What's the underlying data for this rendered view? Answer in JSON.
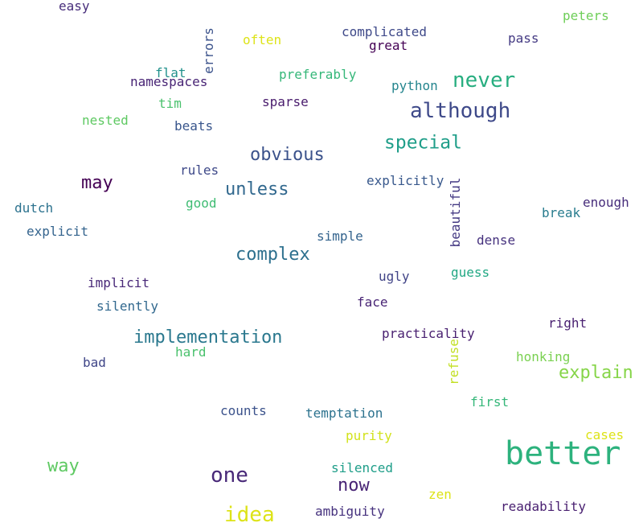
{
  "words": [
    {
      "text": "easy",
      "color": "#472d7b"
    },
    {
      "text": "peters",
      "color": "#6ece58"
    },
    {
      "text": "errors",
      "color": "#3b528b"
    },
    {
      "text": "often",
      "color": "#dde318"
    },
    {
      "text": "complicated",
      "color": "#3e4989"
    },
    {
      "text": "great",
      "color": "#440154"
    },
    {
      "text": "pass",
      "color": "#443a83"
    },
    {
      "text": "flat",
      "color": "#21918c"
    },
    {
      "text": "preferably",
      "color": "#35b779"
    },
    {
      "text": "never",
      "color": "#28ae80"
    },
    {
      "text": "python",
      "color": "#25858e"
    },
    {
      "text": "namespaces",
      "color": "#482475"
    },
    {
      "text": "although",
      "color": "#3e4989"
    },
    {
      "text": "tim",
      "color": "#4ac16d"
    },
    {
      "text": "sparse",
      "color": "#481a6c"
    },
    {
      "text": "nested",
      "color": "#5ec962"
    },
    {
      "text": "beats",
      "color": "#39568c"
    },
    {
      "text": "special",
      "color": "#1f9e89"
    },
    {
      "text": "obvious",
      "color": "#3b528b"
    },
    {
      "text": "rules",
      "color": "#3e4989"
    },
    {
      "text": "may",
      "color": "#440154"
    },
    {
      "text": "unless",
      "color": "#31688e"
    },
    {
      "text": "explicitly",
      "color": "#38588c"
    },
    {
      "text": "beautiful",
      "color": "#443983"
    },
    {
      "text": "good",
      "color": "#3fbc73"
    },
    {
      "text": "dutch",
      "color": "#2c728e"
    },
    {
      "text": "enough",
      "color": "#472d7b"
    },
    {
      "text": "break",
      "color": "#287c8e"
    },
    {
      "text": "explicit",
      "color": "#33638d"
    },
    {
      "text": "simple",
      "color": "#33638d"
    },
    {
      "text": "dense",
      "color": "#46327e"
    },
    {
      "text": "complex",
      "color": "#2d708e"
    },
    {
      "text": "guess",
      "color": "#22a884"
    },
    {
      "text": "ugly",
      "color": "#414487"
    },
    {
      "text": "implicit",
      "color": "#482878"
    },
    {
      "text": "face",
      "color": "#482475"
    },
    {
      "text": "silently",
      "color": "#31688e"
    },
    {
      "text": "right",
      "color": "#481f70"
    },
    {
      "text": "implementation",
      "color": "#2a788e"
    },
    {
      "text": "practicality",
      "color": "#481f70"
    },
    {
      "text": "refuse",
      "color": "#c2df23"
    },
    {
      "text": "hard",
      "color": "#4ac16d"
    },
    {
      "text": "honking",
      "color": "#7ad151"
    },
    {
      "text": "bad",
      "color": "#404688"
    },
    {
      "text": "explain",
      "color": "#86d549"
    },
    {
      "text": "first",
      "color": "#35b779"
    },
    {
      "text": "counts",
      "color": "#3b528b"
    },
    {
      "text": "temptation",
      "color": "#2c728e"
    },
    {
      "text": "purity",
      "color": "#d2e21b"
    },
    {
      "text": "cases",
      "color": "#dde318"
    },
    {
      "text": "better",
      "color": "#2db27d"
    },
    {
      "text": "way",
      "color": "#5ec962"
    },
    {
      "text": "one",
      "color": "#482878"
    },
    {
      "text": "silenced",
      "color": "#1f9e89"
    },
    {
      "text": "now",
      "color": "#482475"
    },
    {
      "text": "zen",
      "color": "#dde318"
    },
    {
      "text": "idea",
      "color": "#dde318"
    },
    {
      "text": "ambiguity",
      "color": "#46327e"
    },
    {
      "text": "readability",
      "color": "#481f70"
    }
  ]
}
